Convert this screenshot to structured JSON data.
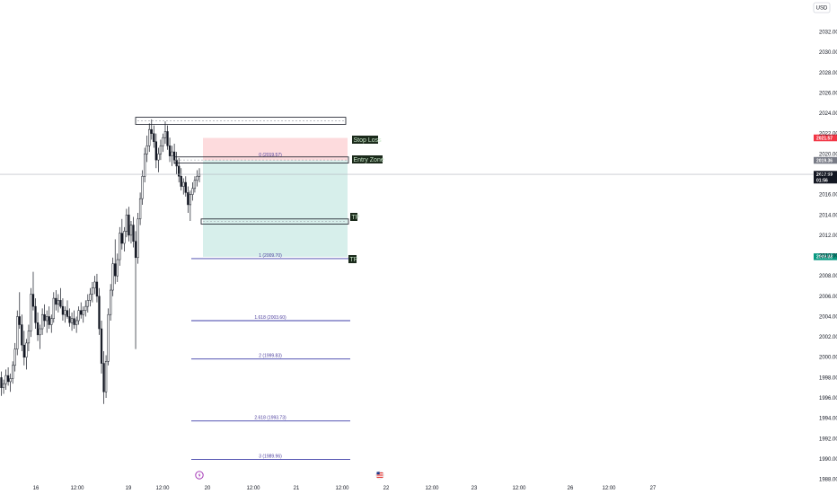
{
  "currency_button": "USD",
  "chart_data": {
    "type": "candlestick",
    "y_range": [
      1988,
      2034
    ],
    "y_ticks": [
      "2032.00",
      "2030.00",
      "2028.00",
      "2026.00",
      "2024.00",
      "2022.00",
      "2020.00",
      "2018.00",
      "2016.00",
      "2014.00",
      "2012.00",
      "2010.00",
      "2008.00",
      "2006.00",
      "2004.00",
      "2002.00",
      "2000.00",
      "1998.00",
      "1996.00",
      "1994.00",
      "1992.00",
      "1990.00",
      "1988.00"
    ],
    "x_ticks": [
      "16",
      "12:00",
      "19",
      "12:00",
      "20",
      "12:00",
      "21",
      "12:00",
      "22",
      "12:00",
      "23",
      "12:00",
      "26",
      "12:00",
      "27"
    ],
    "price_tags": [
      {
        "label": "2021.57",
        "value": 2021.57,
        "color": "#f23645"
      },
      {
        "label": "2019.36",
        "value": 2019.36,
        "color": "#787b86"
      },
      {
        "label": "2017.99",
        "value": 2017.99,
        "color": "#131722",
        "sub": "01:56"
      },
      {
        "label": "2009.88",
        "value": 2009.88,
        "color": "#089981"
      }
    ],
    "fib_levels": [
      {
        "label": "0 (2019.57)",
        "value": 2019.57
      },
      {
        "label": "1 (2009.70)",
        "value": 2009.7
      },
      {
        "label": "1.618 (2003.60)",
        "value": 2003.6
      },
      {
        "label": "2 (1999.83)",
        "value": 1999.83
      },
      {
        "label": "2.618 (1993.73)",
        "value": 1993.73
      },
      {
        "label": "3 (1989.96)",
        "value": 1989.96
      }
    ],
    "zone_labels": {
      "stop_loss": "Stop Loss",
      "entry_zone": "Entry Zone",
      "tp1": "TP",
      "tp2": "TP"
    },
    "trade_box": {
      "stop": 2021.57,
      "entry": 2019.36,
      "target": 2009.88
    },
    "resistance_box": {
      "top": 2023.6,
      "bottom": 2022.9
    },
    "entry_box": {
      "top": 2019.7,
      "bottom": 2019.1
    },
    "tp1_box": {
      "top": 2013.6,
      "bottom": 2013.1
    },
    "current_price": 2017.99,
    "candles": [
      [
        1998.0,
        1998.6,
        1996.2,
        1997.0
      ],
      [
        1997.0,
        1997.8,
        1996.4,
        1997.4
      ],
      [
        1997.4,
        1998.8,
        1996.8,
        1998.2
      ],
      [
        1998.2,
        1999.0,
        1997.2,
        1997.6
      ],
      [
        1997.6,
        1998.4,
        1996.6,
        1997.9
      ],
      [
        1997.9,
        1999.6,
        1997.4,
        1999.2
      ],
      [
        1999.2,
        2001.4,
        1998.6,
        2000.8
      ],
      [
        2000.8,
        2004.6,
        2000.2,
        2004.0
      ],
      [
        2004.0,
        2006.4,
        2002.8,
        2003.2
      ],
      [
        2003.2,
        2004.2,
        2000.6,
        2001.2
      ],
      [
        2001.2,
        2002.6,
        1999.2,
        2000.0
      ],
      [
        2000.0,
        2001.8,
        1998.8,
        2001.4
      ],
      [
        2001.4,
        2003.2,
        2000.6,
        2002.6
      ],
      [
        2002.6,
        2006.8,
        2002.0,
        2006.2
      ],
      [
        2006.2,
        2008.4,
        2004.6,
        2005.0
      ],
      [
        2005.0,
        2005.8,
        2002.8,
        2003.4
      ],
      [
        2003.4,
        2004.4,
        2001.6,
        2002.2
      ],
      [
        2002.2,
        2003.2,
        2000.8,
        2002.8
      ],
      [
        2002.8,
        2004.8,
        2002.2,
        2004.2
      ],
      [
        2004.2,
        2005.2,
        2003.0,
        2003.6
      ],
      [
        2003.6,
        2004.6,
        2002.4,
        2004.0
      ],
      [
        2004.0,
        2005.0,
        2002.8,
        2003.2
      ],
      [
        2003.2,
        2004.2,
        2002.4,
        2003.8
      ],
      [
        2003.8,
        2006.4,
        2003.4,
        2005.8
      ],
      [
        2005.8,
        2006.6,
        2004.6,
        2005.2
      ],
      [
        2005.2,
        2006.2,
        2004.4,
        2005.6
      ],
      [
        2005.6,
        2006.8,
        2004.8,
        2005.0
      ],
      [
        2005.0,
        2005.8,
        2003.6,
        2004.2
      ],
      [
        2004.2,
        2005.0,
        2003.4,
        2004.6
      ],
      [
        2004.6,
        2005.6,
        2003.8,
        2004.0
      ],
      [
        2004.0,
        2004.8,
        2003.0,
        2003.4
      ],
      [
        2003.4,
        2004.4,
        2002.6,
        2003.8
      ],
      [
        2003.8,
        2004.6,
        2002.8,
        2003.2
      ],
      [
        2003.2,
        2004.0,
        2002.4,
        2003.6
      ],
      [
        2003.6,
        2005.0,
        2003.2,
        2004.6
      ],
      [
        2004.6,
        2005.4,
        2003.8,
        2004.2
      ],
      [
        2004.2,
        2005.0,
        2003.4,
        2004.6
      ],
      [
        2004.6,
        2005.6,
        2004.0,
        2005.0
      ],
      [
        2005.0,
        2006.2,
        2004.4,
        2005.6
      ],
      [
        2005.6,
        2006.8,
        2005.0,
        2006.2
      ],
      [
        2006.2,
        2007.4,
        2005.4,
        2006.8
      ],
      [
        2006.8,
        2008.0,
        2006.2,
        2007.4
      ],
      [
        2007.4,
        2008.2,
        2005.4,
        2006.0
      ],
      [
        2006.0,
        2006.8,
        2002.2,
        2002.8
      ],
      [
        2002.8,
        2003.6,
        1998.4,
        1999.4
      ],
      [
        1999.4,
        2000.6,
        1995.4,
        1996.6
      ],
      [
        1996.6,
        2000.2,
        1996.0,
        1999.6
      ],
      [
        1999.6,
        2004.8,
        1999.2,
        2004.2
      ],
      [
        2004.2,
        2007.2,
        2003.6,
        2006.6
      ],
      [
        2006.6,
        2009.8,
        2006.0,
        2009.2
      ],
      [
        2009.2,
        2011.6,
        2007.2,
        2008.0
      ],
      [
        2008.0,
        2010.2,
        2007.4,
        2009.6
      ],
      [
        2009.6,
        2012.8,
        2009.0,
        2012.2
      ],
      [
        2012.2,
        2013.6,
        2010.6,
        2011.2
      ],
      [
        2011.2,
        2012.8,
        2010.4,
        2012.4
      ],
      [
        2012.4,
        2014.6,
        2011.8,
        2014.0
      ],
      [
        2014.0,
        2014.8,
        2011.4,
        2012.0
      ],
      [
        2012.0,
        2013.4,
        2011.2,
        2013.0
      ],
      [
        2013.0,
        2013.8,
        2010.8,
        2011.4
      ],
      [
        2011.4,
        2012.4,
        2000.8,
        2009.8
      ],
      [
        2009.8,
        2014.2,
        2009.2,
        2013.6
      ],
      [
        2013.6,
        2016.2,
        2013.0,
        2015.6
      ],
      [
        2015.6,
        2018.4,
        2015.0,
        2017.8
      ],
      [
        2017.8,
        2020.6,
        2017.2,
        2020.0
      ],
      [
        2020.0,
        2021.8,
        2019.2,
        2020.8
      ],
      [
        2020.8,
        2023.0,
        2020.2,
        2022.4
      ],
      [
        2022.4,
        2023.4,
        2021.4,
        2022.0
      ],
      [
        2022.0,
        2022.8,
        2020.6,
        2021.2
      ],
      [
        2021.2,
        2022.0,
        2018.6,
        2019.4
      ],
      [
        2019.4,
        2020.6,
        2018.2,
        2020.0
      ],
      [
        2020.0,
        2021.4,
        2019.4,
        2020.8
      ],
      [
        2020.8,
        2022.0,
        2020.2,
        2021.6
      ],
      [
        2021.6,
        2023.2,
        2021.0,
        2022.2
      ],
      [
        2022.2,
        2022.8,
        2020.4,
        2020.8
      ],
      [
        2020.8,
        2021.6,
        2019.2,
        2019.8
      ],
      [
        2019.8,
        2020.8,
        2018.8,
        2020.2
      ],
      [
        2020.2,
        2021.0,
        2019.0,
        2019.4
      ],
      [
        2019.4,
        2020.2,
        2018.0,
        2018.8
      ],
      [
        2018.8,
        2019.6,
        2017.2,
        2017.8
      ],
      [
        2017.8,
        2018.6,
        2016.4,
        2016.8
      ],
      [
        2016.8,
        2017.6,
        2016.0,
        2017.2
      ],
      [
        2017.2,
        2017.8,
        2015.8,
        2016.2
      ],
      [
        2016.2,
        2016.8,
        2014.2,
        2015.0
      ],
      [
        2015.0,
        2016.4,
        2013.4,
        2016.0
      ],
      [
        2016.0,
        2017.2,
        2015.4,
        2016.6
      ],
      [
        2016.6,
        2017.8,
        2016.2,
        2017.4
      ],
      [
        2017.4,
        2018.4,
        2016.8,
        2017.8
      ],
      [
        2017.8,
        2018.6,
        2017.2,
        2018.0
      ]
    ]
  }
}
